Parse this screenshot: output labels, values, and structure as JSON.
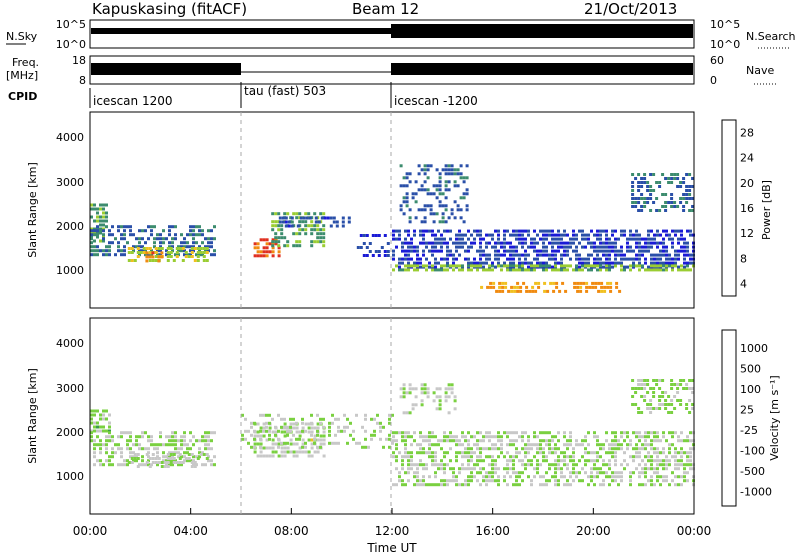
{
  "header": {
    "station": "Kapuskasing (fitACF)",
    "beam": "Beam 12",
    "date": "21/Oct/2013"
  },
  "noise_panel": {
    "left_label": "N.Sky",
    "right_label": "N.Search",
    "left_ticks": [
      "10^5",
      "10^0"
    ],
    "right_ticks": [
      "10^5",
      "10^0"
    ]
  },
  "freq_panel": {
    "left_label": "Freq.",
    "left_unit": "[MHz]",
    "right_label": "Nave",
    "left_ticks": [
      "18",
      "8"
    ],
    "right_ticks": [
      "60",
      "0"
    ]
  },
  "cpid_panel": {
    "label": "CPID",
    "modes": [
      {
        "name": "icescan 1200",
        "start_hour": 0,
        "end_hour": 6
      },
      {
        "name": "tau (fast) 503",
        "start_hour": 6,
        "end_hour": 12
      },
      {
        "name": "icescan -1200",
        "start_hour": 12,
        "end_hour": 24
      }
    ]
  },
  "power_panel": {
    "ylabel": "Slant Range [km]",
    "y_ticks": [
      "1000",
      "2000",
      "3000",
      "4000"
    ],
    "colorbar_label": "Power [dB]",
    "colorbar_ticks": [
      "4",
      "8",
      "12",
      "16",
      "20",
      "24",
      "28"
    ],
    "colors": [
      "#1a1ad6",
      "#2a4fa8",
      "#3c8c6e",
      "#9acd32",
      "#f0c020",
      "#f08a10",
      "#e03020"
    ]
  },
  "velocity_panel": {
    "ylabel": "Slant Range [km]",
    "y_ticks": [
      "1000",
      "2000",
      "3000",
      "4000"
    ],
    "colorbar_label": "Velocity [m s⁻¹]",
    "colorbar_ticks": [
      "1000",
      "500",
      "100",
      "25",
      "-25",
      "-100",
      "-500",
      "-1000"
    ],
    "colors": [
      "#1a2ad0",
      "#2a6a9a",
      "#3c9a4a",
      "#7ad040",
      "#c8c8c8",
      "#f0c020",
      "#f08010",
      "#e02020"
    ]
  },
  "x_axis": {
    "label": "Time UT",
    "ticks": [
      "00:00",
      "04:00",
      "08:00",
      "12:00",
      "16:00",
      "20:00",
      "00:00"
    ]
  },
  "chart_data": {
    "type": "heatmap",
    "title": "Kapuskasing (fitACF)",
    "subtitle": "Beam 12 — 21/Oct/2013",
    "xlabel": "Time UT",
    "ylabel": "Slant Range [km]",
    "xlim_hours": [
      0,
      24
    ],
    "ylim_km": [
      0,
      4500
    ],
    "grid": false,
    "series": [
      {
        "name": "Power [dB]",
        "value_range": [
          0,
          30
        ],
        "echo_regions": [
          {
            "t": [
              0.0,
              0.6
            ],
            "r": [
              1500,
              2400
            ],
            "value": 12,
            "density": 0.7
          },
          {
            "t": [
              0.0,
              5.0
            ],
            "r": [
              1200,
              1900
            ],
            "value": 8,
            "density": 0.6
          },
          {
            "t": [
              1.5,
              4.7
            ],
            "r": [
              1100,
              1400
            ],
            "value": 16,
            "density": 0.6
          },
          {
            "t": [
              2.2,
              2.8
            ],
            "r": [
              1100,
              1300
            ],
            "value": 24,
            "density": 0.5
          },
          {
            "t": [
              6.5,
              7.5
            ],
            "r": [
              1200,
              1600
            ],
            "value": 26,
            "density": 0.7
          },
          {
            "t": [
              7.2,
              9.3
            ],
            "r": [
              1400,
              2200
            ],
            "value": 12,
            "density": 0.6
          },
          {
            "t": [
              7.5,
              10.3
            ],
            "r": [
              1900,
              2100
            ],
            "value": 6,
            "density": 0.5
          },
          {
            "t": [
              10.6,
              11.9
            ],
            "r": [
              1200,
              1700
            ],
            "value": 5,
            "density": 0.4
          },
          {
            "t": [
              12.0,
              24.0
            ],
            "r": [
              900,
              1800
            ],
            "value": 5,
            "density": 0.65
          },
          {
            "t": [
              12.0,
              24.0
            ],
            "r": [
              900,
              1000
            ],
            "value": 14,
            "density": 0.7
          },
          {
            "t": [
              12.3,
              15.0
            ],
            "r": [
              2000,
              3300
            ],
            "value": 7,
            "density": 0.4
          },
          {
            "t": [
              15.5,
              21.0
            ],
            "r": [
              400,
              600
            ],
            "value": 22,
            "density": 0.5
          },
          {
            "t": [
              21.5,
              24.0
            ],
            "r": [
              2200,
              3100
            ],
            "value": 8,
            "density": 0.5
          }
        ]
      },
      {
        "name": "Velocity [m s⁻¹]",
        "value_range": [
          -1000,
          1000
        ],
        "echo_regions": [
          {
            "t": [
              0.0,
              0.8
            ],
            "r": [
              1900,
              2400
            ],
            "value": 80,
            "density": 0.6
          },
          {
            "t": [
              0.0,
              5.0
            ],
            "r": [
              1100,
              1900
            ],
            "value": 0,
            "density": 0.55
          },
          {
            "t": [
              1.5,
              4.7
            ],
            "r": [
              1100,
              1400
            ],
            "value": -60,
            "density": 0.5
          },
          {
            "t": [
              6.5,
              9.3
            ],
            "r": [
              1300,
              2100
            ],
            "value": -80,
            "density": 0.6
          },
          {
            "t": [
              6.0,
              12.0
            ],
            "r": [
              1500,
              2300
            ],
            "value": 0,
            "density": 0.3
          },
          {
            "t": [
              12.0,
              24.0
            ],
            "r": [
              700,
              1900
            ],
            "value": 0,
            "density": 0.55
          },
          {
            "t": [
              12.3,
              14.5
            ],
            "r": [
              2300,
              3000
            ],
            "value": -60,
            "density": 0.35
          },
          {
            "t": [
              21.5,
              24.0
            ],
            "r": [
              2300,
              3100
            ],
            "value": 60,
            "density": 0.45
          }
        ]
      }
    ]
  }
}
